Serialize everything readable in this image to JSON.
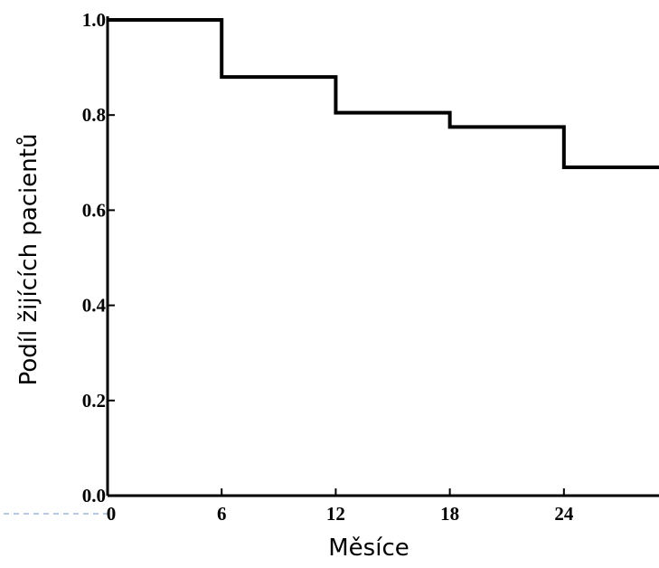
{
  "chart_data": {
    "type": "line",
    "step": "post",
    "xlabel": "Měsíce",
    "ylabel": "Podíl žijících pacientů",
    "xlim": [
      0,
      29
    ],
    "ylim": [
      0,
      1.0
    ],
    "xticks": [
      0,
      6,
      12,
      18,
      24
    ],
    "xtick_labels": [
      "0",
      "6",
      "12",
      "18",
      "24"
    ],
    "yticks": [
      0,
      0.2,
      0.4,
      0.6,
      0.8,
      1.0
    ],
    "ytick_labels": [
      "0.0",
      "0.2",
      "0.4",
      "0.6",
      "0.8",
      "1.0"
    ],
    "grid": false,
    "series": [
      {
        "x": [
          0,
          6,
          12,
          18,
          24,
          29
        ],
        "y": [
          1.0,
          0.88,
          0.805,
          0.775,
          0.69,
          0.69
        ]
      }
    ]
  },
  "decor": {
    "line_color": "#9fb8d8"
  }
}
